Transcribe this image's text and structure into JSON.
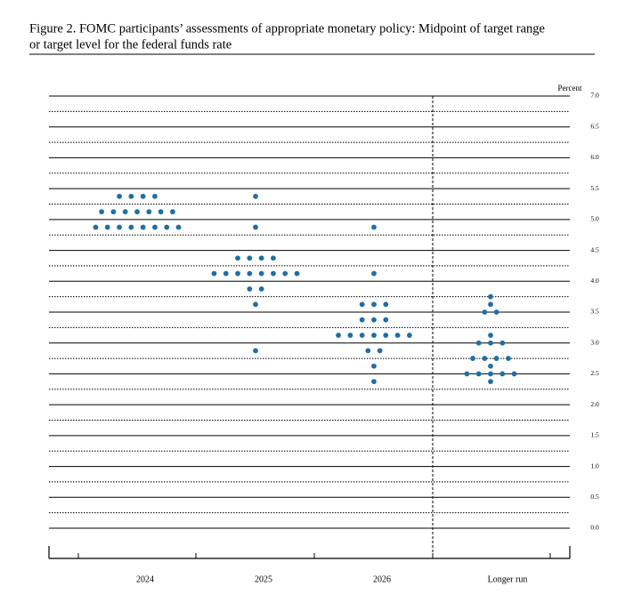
{
  "chart_data": {
    "type": "dot",
    "title": "Figure 2.  FOMC participants’ assessments of appropriate monetary policy: Midpoint of target range or target level for the federal funds rate",
    "y_label": "Percent",
    "categories": [
      "2024",
      "2025",
      "2026",
      "Longer run"
    ],
    "values": [
      [
        5.375,
        5.375,
        5.375,
        5.375,
        5.125,
        5.125,
        5.125,
        5.125,
        5.125,
        5.125,
        5.125,
        4.875,
        4.875,
        4.875,
        4.875,
        4.875,
        4.875,
        4.875,
        4.875
      ],
      [
        5.375,
        4.875,
        4.375,
        4.375,
        4.375,
        4.375,
        4.125,
        4.125,
        4.125,
        4.125,
        4.125,
        4.125,
        4.125,
        4.125,
        3.875,
        3.875,
        3.625,
        2.875
      ],
      [
        4.875,
        4.125,
        3.625,
        3.625,
        3.625,
        3.375,
        3.375,
        3.375,
        3.125,
        3.125,
        3.125,
        3.125,
        3.125,
        3.125,
        3.125,
        2.875,
        2.875,
        2.625,
        2.375
      ],
      [
        3.75,
        3.625,
        3.5,
        3.5,
        3.125,
        3,
        3,
        3,
        2.75,
        2.75,
        2.75,
        2.75,
        2.625,
        2.5,
        2.5,
        2.5,
        2.5,
        2.5,
        2.375
      ]
    ],
    "color": "#1f6fa3",
    "ylim": [
      0,
      7
    ],
    "yticks": [
      {
        "value": 0,
        "label": "0.0"
      },
      {
        "value": 0.5,
        "label": "0.5"
      },
      {
        "value": 1,
        "label": "1.0"
      },
      {
        "value": 1.5,
        "label": "1.5"
      },
      {
        "value": 2,
        "label": "2.0"
      },
      {
        "value": 2.5,
        "label": "2.5"
      },
      {
        "value": 3,
        "label": "3.0"
      },
      {
        "value": 3.5,
        "label": "3.5"
      },
      {
        "value": 4,
        "label": "4.0"
      },
      {
        "value": 4.5,
        "label": "4.5"
      },
      {
        "value": 5,
        "label": "5.0"
      },
      {
        "value": 5.5,
        "label": "5.5"
      },
      {
        "value": 6,
        "label": "6.0"
      },
      {
        "value": 6.5,
        "label": "6.5"
      },
      {
        "value": 7,
        "label": "7.0"
      }
    ],
    "grid": true
  }
}
